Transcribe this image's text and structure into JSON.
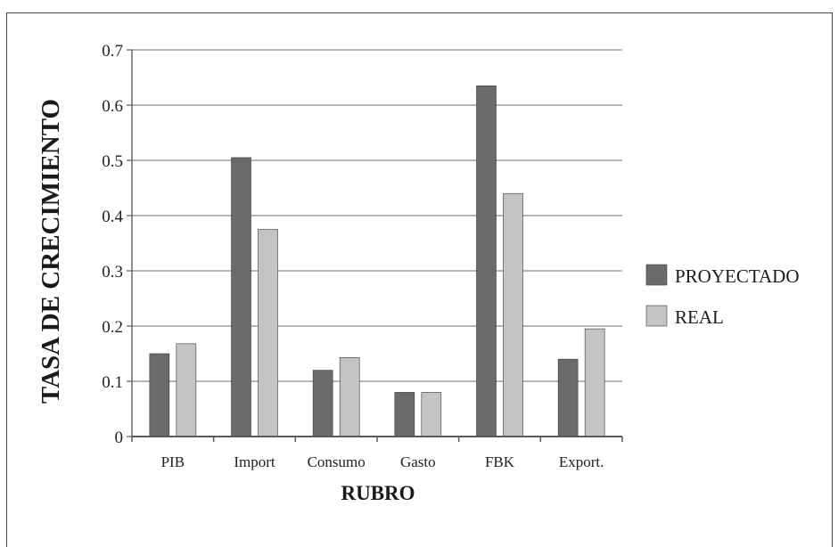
{
  "chart_data": {
    "type": "bar",
    "title": "",
    "xlabel": "RUBRO",
    "ylabel": "TASA DE CRECIMIENTO",
    "categories": [
      "PIB",
      "Import",
      "Consumo",
      "Gasto",
      "FBK",
      "Export."
    ],
    "series": [
      {
        "name": "PROYECTADO",
        "values": [
          0.15,
          0.505,
          0.12,
          0.08,
          0.635,
          0.14
        ],
        "color": "#6b6b6b"
      },
      {
        "name": "REAL",
        "values": [
          0.168,
          0.375,
          0.143,
          0.08,
          0.44,
          0.195
        ],
        "color": "#c4c4c4"
      }
    ],
    "ylim": [
      0,
      0.7
    ],
    "yticks": [
      "0",
      "0.1",
      "0.2",
      "0.3",
      "0.4",
      "0.5",
      "0.6",
      "0.7"
    ],
    "grid": true,
    "legend_position": "right"
  }
}
